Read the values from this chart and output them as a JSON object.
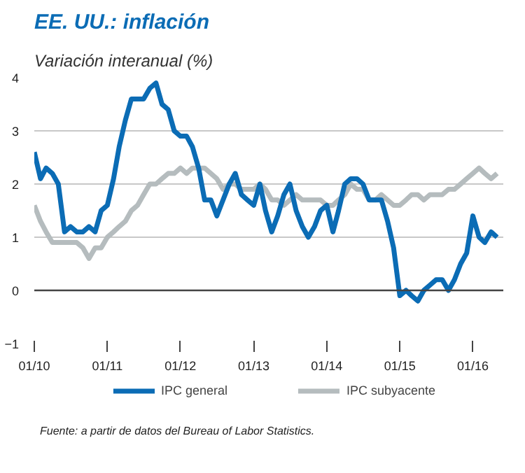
{
  "chart_data": {
    "type": "line",
    "title": "EE. UU.: inflación",
    "subtitle": "Variación interanual (%)",
    "x": [
      "2010-01",
      "2010-02",
      "2010-03",
      "2010-04",
      "2010-05",
      "2010-06",
      "2010-07",
      "2010-08",
      "2010-09",
      "2010-10",
      "2010-11",
      "2010-12",
      "2011-01",
      "2011-02",
      "2011-03",
      "2011-04",
      "2011-05",
      "2011-06",
      "2011-07",
      "2011-08",
      "2011-09",
      "2011-10",
      "2011-11",
      "2011-12",
      "2012-01",
      "2012-02",
      "2012-03",
      "2012-04",
      "2012-05",
      "2012-06",
      "2012-07",
      "2012-08",
      "2012-09",
      "2012-10",
      "2012-11",
      "2012-12",
      "2013-01",
      "2013-02",
      "2013-03",
      "2013-04",
      "2013-05",
      "2013-06",
      "2013-07",
      "2013-08",
      "2013-09",
      "2013-10",
      "2013-11",
      "2013-12",
      "2014-01",
      "2014-02",
      "2014-03",
      "2014-04",
      "2014-05",
      "2014-06",
      "2014-07",
      "2014-08",
      "2014-09",
      "2014-10",
      "2014-11",
      "2014-12",
      "2015-01",
      "2015-02",
      "2015-03",
      "2015-04",
      "2015-05",
      "2015-06",
      "2015-07",
      "2015-08",
      "2015-09",
      "2015-10",
      "2015-11",
      "2015-12",
      "2016-01",
      "2016-02",
      "2016-03",
      "2016-04",
      "2016-05"
    ],
    "series": [
      {
        "name": "IPC general",
        "color": "#0b6cb5",
        "values": [
          2.6,
          2.1,
          2.3,
          2.2,
          2.0,
          1.1,
          1.2,
          1.1,
          1.1,
          1.2,
          1.1,
          1.5,
          1.6,
          2.1,
          2.7,
          3.2,
          3.6,
          3.6,
          3.6,
          3.8,
          3.9,
          3.5,
          3.4,
          3.0,
          2.9,
          2.9,
          2.7,
          2.3,
          1.7,
          1.7,
          1.4,
          1.7,
          2.0,
          2.2,
          1.8,
          1.7,
          1.6,
          2.0,
          1.5,
          1.1,
          1.4,
          1.8,
          2.0,
          1.5,
          1.2,
          1.0,
          1.2,
          1.5,
          1.6,
          1.1,
          1.5,
          2.0,
          2.1,
          2.1,
          2.0,
          1.7,
          1.7,
          1.7,
          1.3,
          0.8,
          -0.1,
          0.0,
          -0.1,
          -0.2,
          0.0,
          0.1,
          0.2,
          0.2,
          0.0,
          0.2,
          0.5,
          0.7,
          1.4,
          1.0,
          0.9,
          1.1,
          1.0
        ]
      },
      {
        "name": "IPC subyacente",
        "color": "#b5bcbe",
        "values": [
          1.6,
          1.3,
          1.1,
          0.9,
          0.9,
          0.9,
          0.9,
          0.9,
          0.8,
          0.6,
          0.8,
          0.8,
          1.0,
          1.1,
          1.2,
          1.3,
          1.5,
          1.6,
          1.8,
          2.0,
          2.0,
          2.1,
          2.2,
          2.2,
          2.3,
          2.2,
          2.3,
          2.3,
          2.3,
          2.2,
          2.1,
          1.9,
          2.0,
          2.0,
          1.9,
          1.9,
          1.9,
          2.0,
          1.9,
          1.7,
          1.7,
          1.6,
          1.7,
          1.8,
          1.7,
          1.7,
          1.7,
          1.7,
          1.6,
          1.6,
          1.7,
          1.8,
          2.0,
          1.9,
          1.9,
          1.7,
          1.7,
          1.8,
          1.7,
          1.6,
          1.6,
          1.7,
          1.8,
          1.8,
          1.7,
          1.8,
          1.8,
          1.8,
          1.9,
          1.9,
          2.0,
          2.1,
          2.2,
          2.3,
          2.2,
          2.1,
          2.2
        ]
      }
    ],
    "xlim": [
      "2010-01",
      "2016-06"
    ],
    "xticks": [
      {
        "value": "2010-01",
        "label": "01/10"
      },
      {
        "value": "2011-01",
        "label": "01/11"
      },
      {
        "value": "2012-01",
        "label": "01/12"
      },
      {
        "value": "2013-01",
        "label": "01/13"
      },
      {
        "value": "2014-01",
        "label": "01/14"
      },
      {
        "value": "2015-01",
        "label": "01/15"
      },
      {
        "value": "2016-01",
        "label": "01/16"
      }
    ],
    "ylim": [
      -1,
      4
    ],
    "yticks": [
      -1,
      0,
      1,
      2,
      3,
      4
    ],
    "grid": "y",
    "legend": "bottom",
    "line_style": "solid",
    "ref_lines": [
      {
        "axis": "y",
        "value": 0,
        "color": "#444444"
      }
    ],
    "annotations": [
      "Fuente: a partir de datos del Bureau of Labor Statistics."
    ]
  }
}
